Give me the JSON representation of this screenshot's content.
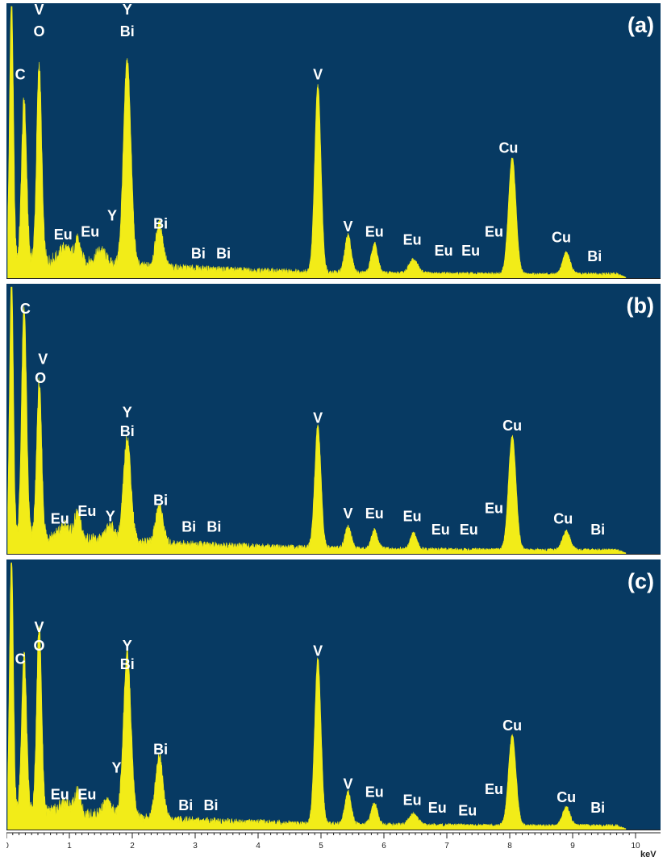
{
  "chart_data": [
    {
      "type": "area",
      "panel_label": "(a)",
      "xlabel": "keV",
      "xlim": [
        0,
        10
      ],
      "ylim": [
        0,
        100
      ],
      "peaks": [
        {
          "x": 0.08,
          "height": 100,
          "width": 0.03
        },
        {
          "x": 0.28,
          "height": 60,
          "width": 0.04
        },
        {
          "x": 0.52,
          "height": 73,
          "width": 0.04
        },
        {
          "x": 0.93,
          "height": 5,
          "width": 0.08
        },
        {
          "x": 1.13,
          "height": 8,
          "width": 0.05
        },
        {
          "x": 1.5,
          "height": 5,
          "width": 0.08
        },
        {
          "x": 1.92,
          "height": 76,
          "width": 0.06
        },
        {
          "x": 2.43,
          "height": 16,
          "width": 0.06
        },
        {
          "x": 4.95,
          "height": 69,
          "width": 0.05
        },
        {
          "x": 5.43,
          "height": 14,
          "width": 0.05
        },
        {
          "x": 5.85,
          "height": 11,
          "width": 0.05
        },
        {
          "x": 6.47,
          "height": 5,
          "width": 0.07
        },
        {
          "x": 8.04,
          "height": 43,
          "width": 0.06
        },
        {
          "x": 8.9,
          "height": 8,
          "width": 0.06
        }
      ],
      "labels": [
        {
          "text": "C",
          "x": 0.22,
          "y": 73
        },
        {
          "text": "V",
          "x": 0.52,
          "y": 97
        },
        {
          "text": "O",
          "x": 0.52,
          "y": 89
        },
        {
          "text": "Y",
          "x": 1.92,
          "y": 97
        },
        {
          "text": "Bi",
          "x": 1.92,
          "y": 89
        },
        {
          "text": "Eu",
          "x": 0.9,
          "y": 14
        },
        {
          "text": "Eu",
          "x": 1.33,
          "y": 15
        },
        {
          "text": "Y",
          "x": 1.68,
          "y": 21
        },
        {
          "text": "Bi",
          "x": 2.45,
          "y": 18
        },
        {
          "text": "Bi",
          "x": 3.05,
          "y": 7
        },
        {
          "text": "Bi",
          "x": 3.45,
          "y": 7
        },
        {
          "text": "V",
          "x": 4.95,
          "y": 73
        },
        {
          "text": "V",
          "x": 5.43,
          "y": 17
        },
        {
          "text": "Eu",
          "x": 5.85,
          "y": 15
        },
        {
          "text": "Eu",
          "x": 6.45,
          "y": 12
        },
        {
          "text": "Eu",
          "x": 6.95,
          "y": 8
        },
        {
          "text": "Eu",
          "x": 7.38,
          "y": 8
        },
        {
          "text": "Eu",
          "x": 7.75,
          "y": 15
        },
        {
          "text": "Cu",
          "x": 7.98,
          "y": 46
        },
        {
          "text": "Cu",
          "x": 8.82,
          "y": 13
        },
        {
          "text": "Bi",
          "x": 9.35,
          "y": 6
        }
      ]
    },
    {
      "type": "area",
      "panel_label": "(b)",
      "xlabel": "keV",
      "xlim": [
        0,
        10
      ],
      "ylim": [
        0,
        100
      ],
      "peaks": [
        {
          "x": 0.08,
          "height": 100,
          "width": 0.03
        },
        {
          "x": 0.28,
          "height": 87,
          "width": 0.04
        },
        {
          "x": 0.52,
          "height": 58,
          "width": 0.04
        },
        {
          "x": 0.93,
          "height": 4,
          "width": 0.08
        },
        {
          "x": 1.13,
          "height": 9,
          "width": 0.05
        },
        {
          "x": 1.65,
          "height": 6,
          "width": 0.06
        },
        {
          "x": 1.92,
          "height": 39,
          "width": 0.06
        },
        {
          "x": 2.43,
          "height": 14,
          "width": 0.06
        },
        {
          "x": 4.95,
          "height": 46,
          "width": 0.05
        },
        {
          "x": 5.43,
          "height": 8,
          "width": 0.05
        },
        {
          "x": 5.85,
          "height": 7,
          "width": 0.05
        },
        {
          "x": 6.47,
          "height": 6,
          "width": 0.05
        },
        {
          "x": 8.04,
          "height": 43,
          "width": 0.06
        },
        {
          "x": 8.9,
          "height": 7,
          "width": 0.06
        }
      ],
      "labels": [
        {
          "text": "C",
          "x": 0.3,
          "y": 90
        },
        {
          "text": "V",
          "x": 0.58,
          "y": 71
        },
        {
          "text": "O",
          "x": 0.54,
          "y": 64
        },
        {
          "text": "Y",
          "x": 1.92,
          "y": 51
        },
        {
          "text": "Bi",
          "x": 1.92,
          "y": 44
        },
        {
          "text": "Eu",
          "x": 0.85,
          "y": 11
        },
        {
          "text": "Eu",
          "x": 1.28,
          "y": 14
        },
        {
          "text": "Y",
          "x": 1.65,
          "y": 12
        },
        {
          "text": "Bi",
          "x": 2.45,
          "y": 18
        },
        {
          "text": "Bi",
          "x": 2.9,
          "y": 8
        },
        {
          "text": "Bi",
          "x": 3.3,
          "y": 8
        },
        {
          "text": "V",
          "x": 4.95,
          "y": 49
        },
        {
          "text": "V",
          "x": 5.43,
          "y": 13
        },
        {
          "text": "Eu",
          "x": 5.85,
          "y": 13
        },
        {
          "text": "Eu",
          "x": 6.45,
          "y": 12
        },
        {
          "text": "Eu",
          "x": 6.9,
          "y": 7
        },
        {
          "text": "Eu",
          "x": 7.35,
          "y": 7
        },
        {
          "text": "Eu",
          "x": 7.75,
          "y": 15
        },
        {
          "text": "Cu",
          "x": 8.04,
          "y": 46
        },
        {
          "text": "Cu",
          "x": 8.85,
          "y": 11
        },
        {
          "text": "Bi",
          "x": 9.4,
          "y": 7
        }
      ]
    },
    {
      "type": "area",
      "panel_label": "(c)",
      "xlabel": "keV",
      "xlim": [
        0,
        10
      ],
      "ylim": [
        0,
        100
      ],
      "peaks": [
        {
          "x": 0.08,
          "height": 100,
          "width": 0.03
        },
        {
          "x": 0.28,
          "height": 60,
          "width": 0.04
        },
        {
          "x": 0.52,
          "height": 71,
          "width": 0.04
        },
        {
          "x": 0.93,
          "height": 4,
          "width": 0.08
        },
        {
          "x": 1.13,
          "height": 8,
          "width": 0.05
        },
        {
          "x": 1.6,
          "height": 5,
          "width": 0.08
        },
        {
          "x": 1.92,
          "height": 62,
          "width": 0.06
        },
        {
          "x": 2.43,
          "height": 24,
          "width": 0.06
        },
        {
          "x": 4.95,
          "height": 62,
          "width": 0.05
        },
        {
          "x": 5.43,
          "height": 12,
          "width": 0.05
        },
        {
          "x": 5.85,
          "height": 8,
          "width": 0.05
        },
        {
          "x": 6.47,
          "height": 4,
          "width": 0.07
        },
        {
          "x": 8.04,
          "height": 34,
          "width": 0.06
        },
        {
          "x": 8.9,
          "height": 7,
          "width": 0.06
        }
      ],
      "labels": [
        {
          "text": "C",
          "x": 0.22,
          "y": 62
        },
        {
          "text": "V",
          "x": 0.52,
          "y": 74
        },
        {
          "text": "O",
          "x": 0.52,
          "y": 67
        },
        {
          "text": "Y",
          "x": 1.92,
          "y": 67
        },
        {
          "text": "Bi",
          "x": 1.92,
          "y": 60
        },
        {
          "text": "Eu",
          "x": 0.85,
          "y": 11
        },
        {
          "text": "Eu",
          "x": 1.28,
          "y": 11
        },
        {
          "text": "Y",
          "x": 1.75,
          "y": 21
        },
        {
          "text": "Bi",
          "x": 2.45,
          "y": 28
        },
        {
          "text": "Bi",
          "x": 2.85,
          "y": 7
        },
        {
          "text": "Bi",
          "x": 3.25,
          "y": 7
        },
        {
          "text": "V",
          "x": 4.95,
          "y": 65
        },
        {
          "text": "V",
          "x": 5.43,
          "y": 15
        },
        {
          "text": "Eu",
          "x": 5.85,
          "y": 12
        },
        {
          "text": "Eu",
          "x": 6.45,
          "y": 9
        },
        {
          "text": "Eu",
          "x": 6.85,
          "y": 6
        },
        {
          "text": "Eu",
          "x": 7.33,
          "y": 5
        },
        {
          "text": "Eu",
          "x": 7.75,
          "y": 13
        },
        {
          "text": "Cu",
          "x": 8.04,
          "y": 37
        },
        {
          "text": "Cu",
          "x": 8.9,
          "y": 10
        },
        {
          "text": "Bi",
          "x": 9.4,
          "y": 6
        }
      ]
    }
  ],
  "x_axis": {
    "ticks": [
      "0",
      "1",
      "2",
      "3",
      "4",
      "5",
      "6",
      "7",
      "8",
      "9",
      "10"
    ],
    "unit": "keV"
  },
  "colors": {
    "background": "#073a63",
    "spectrum": "#f2ec18",
    "label": "#ffffff"
  }
}
